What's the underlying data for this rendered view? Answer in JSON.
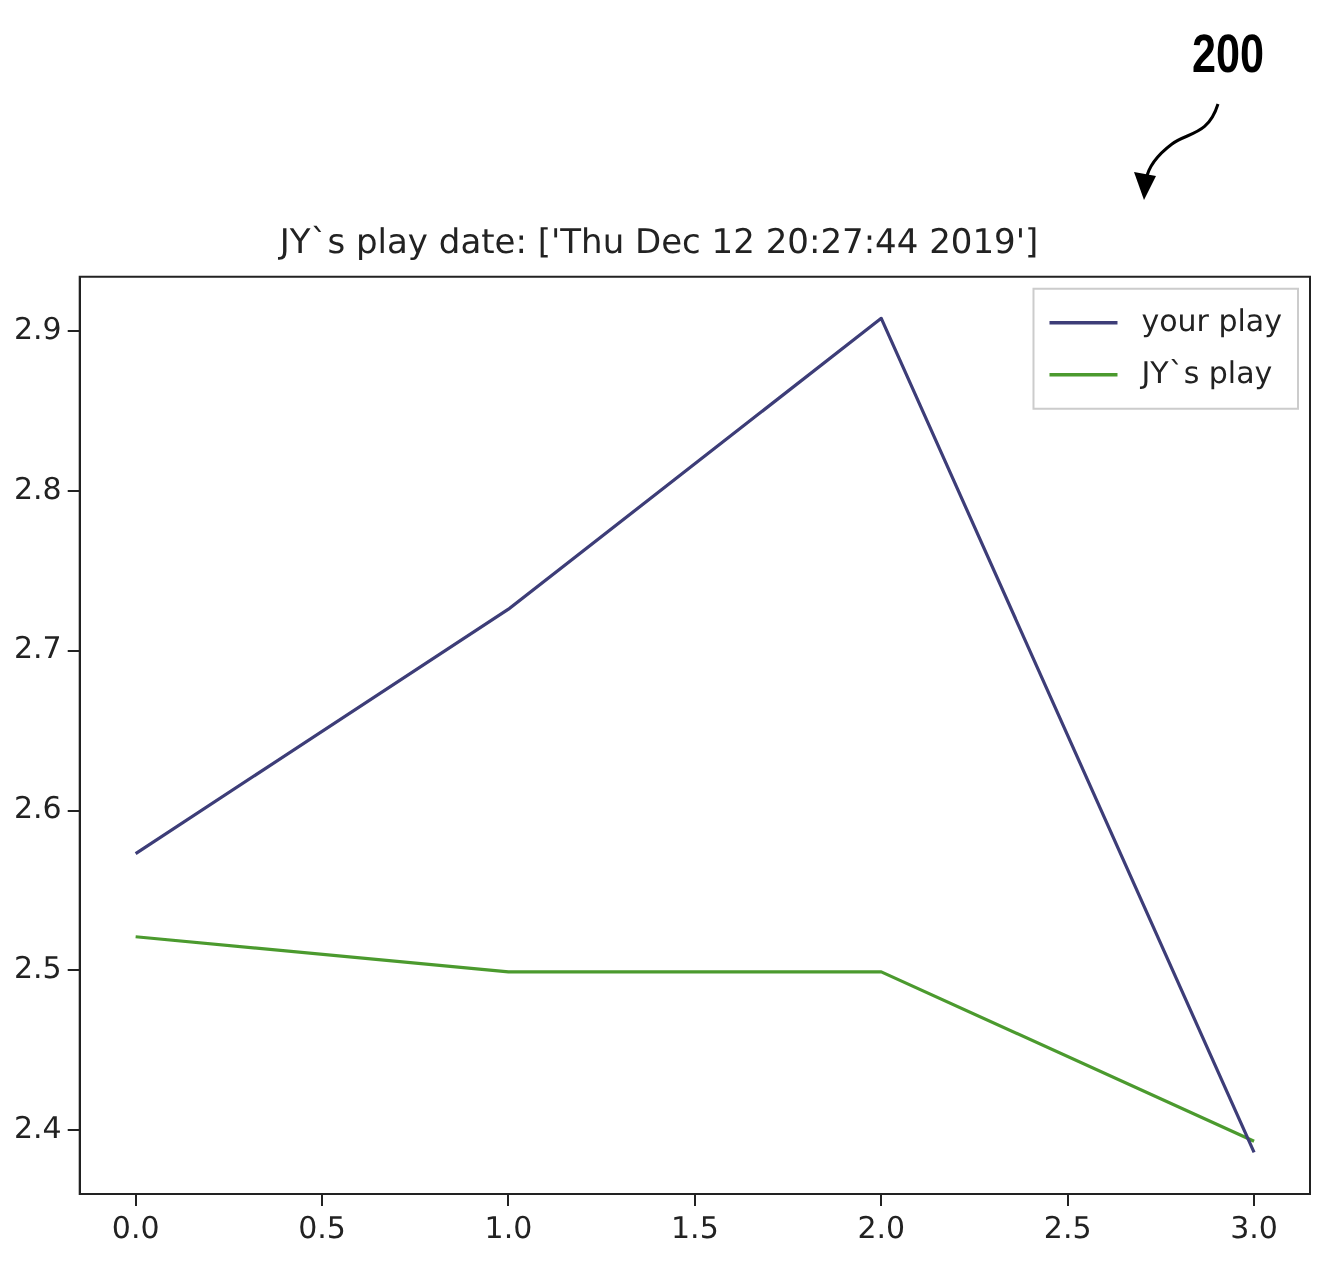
{
  "chart_data": {
    "type": "line",
    "title": "JY`s play date: ['Thu Dec 12 20:27:44 2019']",
    "x": [
      0,
      1,
      2,
      3
    ],
    "series": [
      {
        "name": "your play",
        "color": "#3d3d78",
        "values": [
          2.573,
          2.726,
          2.908,
          2.386
        ]
      },
      {
        "name": "JY`s play",
        "color": "#4b9a2e",
        "values": [
          2.521,
          2.499,
          2.499,
          2.393
        ]
      }
    ],
    "xlim": [
      -0.15,
      3.15
    ],
    "xticks": [
      {
        "value": 0,
        "label": "0.0"
      },
      {
        "value": 0.5,
        "label": "0.5"
      },
      {
        "value": 1,
        "label": "1.0"
      },
      {
        "value": 1.5,
        "label": "1.5"
      },
      {
        "value": 2,
        "label": "2.0"
      },
      {
        "value": 2.5,
        "label": "2.5"
      },
      {
        "value": 3,
        "label": "3.0"
      }
    ],
    "ylim": [
      2.36,
      2.934
    ],
    "yticks": [
      {
        "value": 2.4,
        "label": "2.4"
      },
      {
        "value": 2.5,
        "label": "2.5"
      },
      {
        "value": 2.6,
        "label": "2.6"
      },
      {
        "value": 2.7,
        "label": "2.7"
      },
      {
        "value": 2.8,
        "label": "2.8"
      },
      {
        "value": 2.9,
        "label": "2.9"
      }
    ],
    "grid": false,
    "legend": "top right",
    "marker": "none",
    "line_style": "solid",
    "annotations": [
      "200"
    ]
  }
}
